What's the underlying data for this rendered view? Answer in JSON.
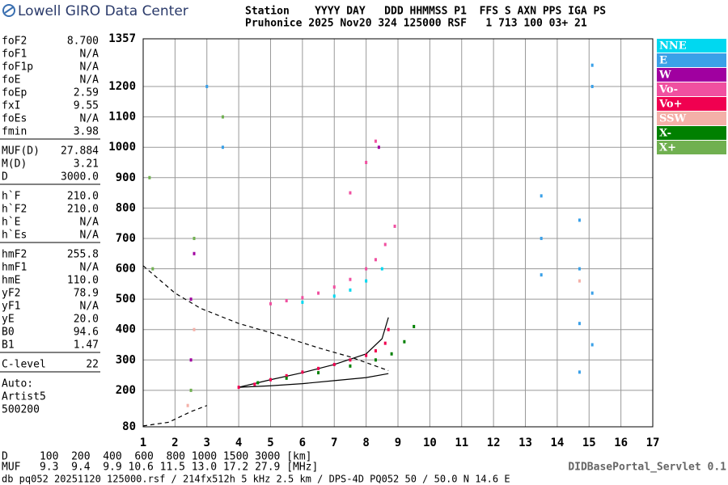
{
  "header": {
    "brand": "Lowell GIRO Data Center",
    "station_labels": "Station    YYYY DAY   DDD HHMMSS P1  FFS S AXN PPS IGA PS",
    "station_values": "Pruhonice 2025 Nov20 324 125000 RSF   1 713 100 03+ 21"
  },
  "parameters": [
    [
      [
        "foF2",
        "8.700"
      ],
      [
        "foF1",
        "N/A"
      ],
      [
        "foF1p",
        "N/A"
      ],
      [
        "foE",
        "N/A"
      ],
      [
        "foEp",
        "2.59"
      ],
      [
        "fxI",
        "9.55"
      ],
      [
        "foEs",
        "N/A"
      ],
      [
        "fmin",
        "3.98"
      ]
    ],
    [
      [
        "MUF(D)",
        "27.884"
      ],
      [
        "M(D)",
        "3.21"
      ],
      [
        "D",
        "3000.0"
      ]
    ],
    [
      [
        "h`F",
        "210.0"
      ],
      [
        "h`F2",
        "210.0"
      ],
      [
        "h`E",
        "N/A"
      ],
      [
        "h`Es",
        "N/A"
      ]
    ],
    [
      [
        "hmF2",
        "255.8"
      ],
      [
        "hmF1",
        "N/A"
      ],
      [
        "hmE",
        "110.0"
      ],
      [
        "yF2",
        "78.9"
      ],
      [
        "yF1",
        "N/A"
      ],
      [
        "yE",
        "20.0"
      ],
      [
        "B0",
        "94.6"
      ],
      [
        "B1",
        "1.47"
      ]
    ],
    [
      [
        "C-level",
        "22"
      ]
    ]
  ],
  "auto": [
    "Auto:",
    "Artist5",
    "500200"
  ],
  "footer": {
    "d_row": "D     100  200  400  600  800 1000 1500 3000 [km]",
    "muf_row": "MUF   9.3  9.4  9.9 10.6 11.5 13.0 17.2 27.9 [MHz]",
    "servlet": "DIDBasePortal_Servlet 0.1",
    "info": "db pq052 20251120 125000.rsf / 214fx512h 5 kHz 2.5 km / DPS-4D PQ052 50 / 50.0 N 14.6 E"
  },
  "chart_data": {
    "type": "scatter",
    "grid": true,
    "xlim": [
      1,
      17
    ],
    "xticks": [
      1,
      2,
      3,
      4,
      5,
      6,
      7,
      8,
      9,
      10,
      11,
      12,
      13,
      14,
      15,
      16,
      17
    ],
    "ylim": [
      80,
      1357
    ],
    "yticks": [
      80,
      200,
      300,
      400,
      500,
      600,
      700,
      800,
      900,
      1000,
      1100,
      1200,
      1357
    ],
    "series": [
      {
        "name": "NNE",
        "color": "#00d8f0",
        "x": [
          6,
          7,
          7.5,
          8,
          8.5
        ],
        "values": [
          490,
          510,
          530,
          560,
          600
        ]
      },
      {
        "name": "E",
        "color": "#3aa0e8",
        "x": [
          13.5,
          13.5,
          13.5,
          14.7,
          14.7,
          14.7,
          14.7,
          15.1,
          15.1,
          15.1,
          15.1,
          3,
          3.5
        ],
        "values": [
          580,
          700,
          840,
          260,
          420,
          600,
          760,
          350,
          520,
          1200,
          1270,
          1200,
          1000
        ]
      },
      {
        "name": "W",
        "color": "#a000a0",
        "x": [
          2.5,
          2.5,
          2.6,
          8.4
        ],
        "values": [
          300,
          500,
          650,
          1000
        ]
      },
      {
        "name": "Vo-",
        "color": "#f050a0",
        "x": [
          5,
          5.5,
          6,
          6.5,
          7,
          7.5,
          8,
          8.3,
          8.6,
          8.9,
          7.5,
          8,
          8.3
        ],
        "values": [
          485,
          495,
          505,
          520,
          540,
          565,
          600,
          630,
          680,
          740,
          850,
          950,
          1020
        ]
      },
      {
        "name": "Vo+",
        "color": "#f00050",
        "x": [
          4,
          4.5,
          5,
          5.5,
          6,
          6.5,
          7,
          7.5,
          8,
          8.3,
          8.6,
          8.7
        ],
        "values": [
          210,
          220,
          235,
          248,
          260,
          272,
          285,
          300,
          315,
          330,
          355,
          400
        ]
      },
      {
        "name": "SSW",
        "color": "#f4b0a8",
        "x": [
          2.4,
          2.6,
          14.7
        ],
        "values": [
          150,
          400,
          560
        ]
      },
      {
        "name": "X-",
        "color": "#008000",
        "x": [
          4.6,
          5.5,
          6.5,
          7.5,
          8.3,
          8.8,
          9.2,
          9.5
        ],
        "values": [
          225,
          240,
          258,
          280,
          300,
          320,
          360,
          410
        ]
      },
      {
        "name": "X+",
        "color": "#70b050",
        "x": [
          1.3,
          1.2,
          2.5,
          2.6,
          3.5
        ],
        "values": [
          600,
          900,
          200,
          700,
          1100
        ]
      }
    ],
    "curves": [
      {
        "style": "dashed",
        "x": [
          1,
          2,
          2.8,
          4,
          5,
          6.5,
          7.5,
          8.7
        ],
        "values": [
          610,
          520,
          470,
          420,
          390,
          340,
          310,
          265
        ]
      },
      {
        "style": "dashed",
        "x": [
          1,
          1.8,
          2.5,
          3
        ],
        "values": [
          83,
          95,
          130,
          150
        ]
      },
      {
        "style": "solid",
        "x": [
          4,
          5,
          6,
          7,
          8,
          8.7
        ],
        "values": [
          210,
          215,
          222,
          232,
          242,
          255
        ]
      },
      {
        "style": "solid",
        "x": [
          4,
          5,
          6,
          7,
          8,
          8.5,
          8.7
        ],
        "values": [
          210,
          235,
          258,
          285,
          320,
          370,
          440
        ]
      }
    ]
  }
}
